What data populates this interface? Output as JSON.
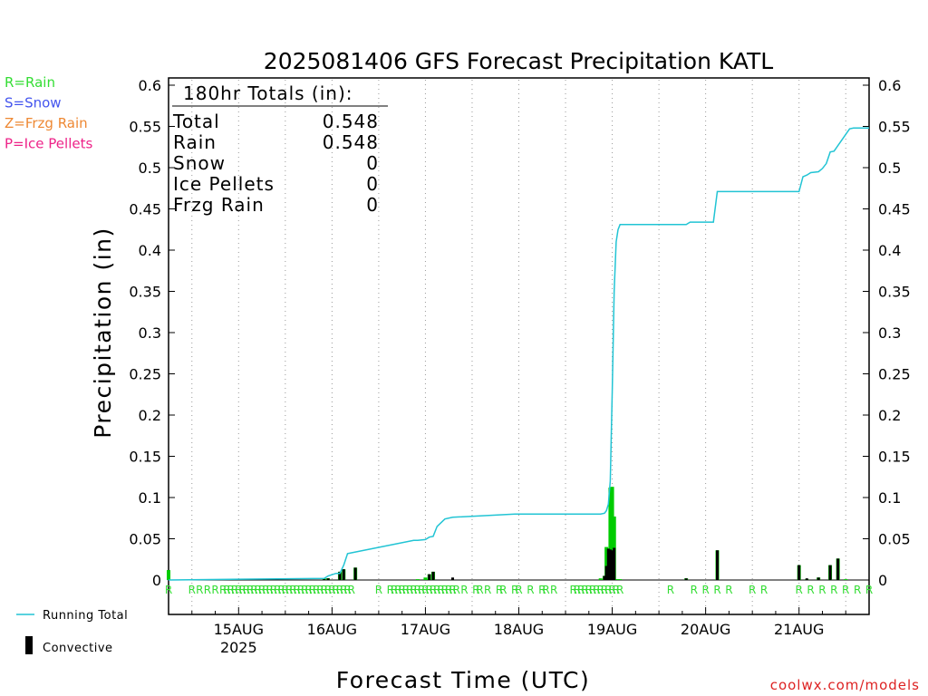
{
  "title": "2025081406 GFS Forecast Precipitation KATL",
  "ylabel": "Precipitation (in)",
  "xlabel": "Forecast Time (UTC)",
  "credit": "coolwx.com/models",
  "ptype_legend": [
    {
      "label": "R=Rain",
      "color": "#33dd33"
    },
    {
      "label": "S=Snow",
      "color": "#4455ee"
    },
    {
      "label": "Z=Frzg Rain",
      "color": "#ee8833"
    },
    {
      "label": "P=Ice Pellets",
      "color": "#ee2288"
    }
  ],
  "bottom_legend": {
    "running_total": "Running Total",
    "convective": "Convective"
  },
  "totals": {
    "heading": "180hr Totals (in):",
    "rows": [
      {
        "label": "Total",
        "value": "0.548"
      },
      {
        "label": "Rain",
        "value": "0.548"
      },
      {
        "label": "Snow",
        "value": "0"
      },
      {
        "label": "Ice Pellets",
        "value": "0"
      },
      {
        "label": "Frzg Rain",
        "value": "0"
      }
    ]
  },
  "colors": {
    "running_total": "#22c4d4",
    "precip_bar": "#00cc00",
    "convective_bar": "#000000",
    "rain_marker": "#33dd33",
    "gridline": "#999999"
  },
  "chart_data": {
    "type": "bar",
    "xlim_hours": [
      6,
      186
    ],
    "ylim": [
      0,
      0.6
    ],
    "yticks": [
      "0",
      "0.05",
      "0.1",
      "0.15",
      "0.2",
      "0.25",
      "0.3",
      "0.35",
      "0.4",
      "0.45",
      "0.5",
      "0.55",
      "0.6"
    ],
    "xticks": [
      {
        "hour": 24,
        "label": "15AUG",
        "sub": "2025"
      },
      {
        "hour": 48,
        "label": "16AUG",
        "sub": ""
      },
      {
        "hour": 72,
        "label": "17AUG",
        "sub": ""
      },
      {
        "hour": 96,
        "label": "18AUG",
        "sub": ""
      },
      {
        "hour": 120,
        "label": "19AUG",
        "sub": ""
      },
      {
        "hour": 144,
        "label": "20AUG",
        "sub": ""
      },
      {
        "hour": 168,
        "label": "21AUG",
        "sub": ""
      }
    ],
    "series": [
      {
        "name": "Running Total",
        "kind": "line",
        "x": [
          6,
          46,
          47,
          49,
          50,
          51,
          52,
          53,
          69,
          70,
          72,
          73,
          74,
          75,
          77,
          79,
          95,
          117,
          118,
          118.5,
          119,
          119.5,
          120,
          120.5,
          121,
          121.5,
          122,
          139,
          140,
          146,
          147,
          168,
          169,
          170,
          171,
          173,
          174,
          175,
          176,
          177,
          181,
          182,
          186
        ],
        "y": [
          0,
          0.002,
          0.005,
          0.008,
          0.008,
          0.018,
          0.032,
          0.033,
          0.048,
          0.048,
          0.049,
          0.052,
          0.053,
          0.065,
          0.074,
          0.076,
          0.08,
          0.08,
          0.081,
          0.084,
          0.092,
          0.12,
          0.23,
          0.35,
          0.41,
          0.425,
          0.431,
          0.431,
          0.434,
          0.434,
          0.471,
          0.471,
          0.489,
          0.491,
          0.494,
          0.495,
          0.499,
          0.505,
          0.519,
          0.52,
          0.547,
          0.548,
          0.548
        ]
      },
      {
        "name": "Precipitation",
        "kind": "bar",
        "x": [
          6,
          46,
          47,
          50,
          51,
          54,
          70,
          72,
          72.5,
          73,
          74,
          117,
          118,
          118.5,
          119,
          119.5,
          120,
          120.5,
          121,
          121.5,
          122,
          139,
          147,
          168,
          170,
          173,
          176,
          178,
          180
        ],
        "y": [
          0.012,
          0.002,
          0.002,
          0.01,
          0.013,
          0.015,
          0.001,
          0.003,
          0.001,
          0.007,
          0.01,
          0.002,
          0.005,
          0.04,
          0.038,
          0.112,
          0.113,
          0.077,
          0.001,
          0.001,
          0.001,
          0.002,
          0.036,
          0.018,
          0.001,
          0.003,
          0.018,
          0.026,
          0.001
        ]
      },
      {
        "name": "Convective",
        "kind": "bar",
        "x": [
          46,
          47,
          50,
          51,
          54,
          73,
          74,
          79,
          118,
          118.5,
          119,
          119.5,
          120,
          120.5,
          139,
          147,
          168,
          170,
          173,
          176,
          178
        ],
        "y": [
          0.001,
          0.002,
          0.01,
          0.013,
          0.015,
          0.007,
          0.01,
          0.003,
          0.005,
          0.017,
          0.038,
          0.037,
          0.036,
          0.039,
          0.002,
          0.036,
          0.018,
          0.002,
          0.003,
          0.018,
          0.026
        ]
      }
    ],
    "ptype_marks": {
      "label": "R",
      "hours": [
        6,
        12,
        14,
        16,
        18,
        20,
        21,
        22,
        23,
        24,
        25,
        26,
        27,
        28,
        29,
        30,
        31,
        32,
        33,
        34,
        35,
        36,
        37,
        38,
        39,
        40,
        41,
        42,
        43,
        44,
        45,
        46,
        47,
        48,
        49,
        50,
        51,
        52,
        53,
        60,
        63,
        64,
        65,
        66,
        67,
        68,
        69,
        70,
        71,
        72,
        73,
        74,
        75,
        76,
        77,
        78,
        79,
        80,
        82,
        85,
        86,
        88,
        91,
        92,
        95,
        96,
        99,
        102,
        103,
        105,
        110,
        111,
        112,
        113,
        114,
        115,
        116,
        117,
        118,
        119,
        120,
        121,
        122,
        135,
        141,
        144,
        147,
        150,
        156,
        159,
        168,
        171,
        174,
        177,
        180,
        183,
        186
      ]
    }
  }
}
